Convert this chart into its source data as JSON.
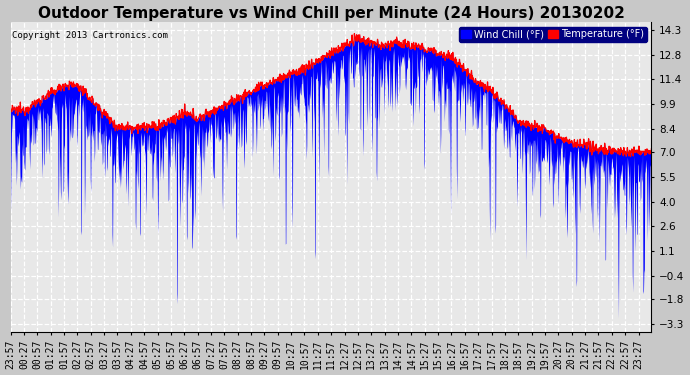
{
  "title": "Outdoor Temperature vs Wind Chill per Minute (24 Hours) 20130202",
  "copyright": "Copyright 2013 Cartronics.com",
  "legend_wind": "Wind Chill (°F)",
  "legend_temp": "Temperature (°F)",
  "yticks": [
    14.3,
    12.8,
    11.4,
    9.9,
    8.4,
    7.0,
    5.5,
    4.0,
    2.6,
    1.1,
    -0.4,
    -1.8,
    -3.3
  ],
  "ylim": [
    -3.8,
    14.8
  ],
  "bg_color": "#c8c8c8",
  "plot_bg": "#e8e8e8",
  "grid_color": "#ffffff",
  "temp_color": "#ff0000",
  "wind_color": "#0000ff",
  "title_fontsize": 11,
  "tick_fontsize": 7.5
}
